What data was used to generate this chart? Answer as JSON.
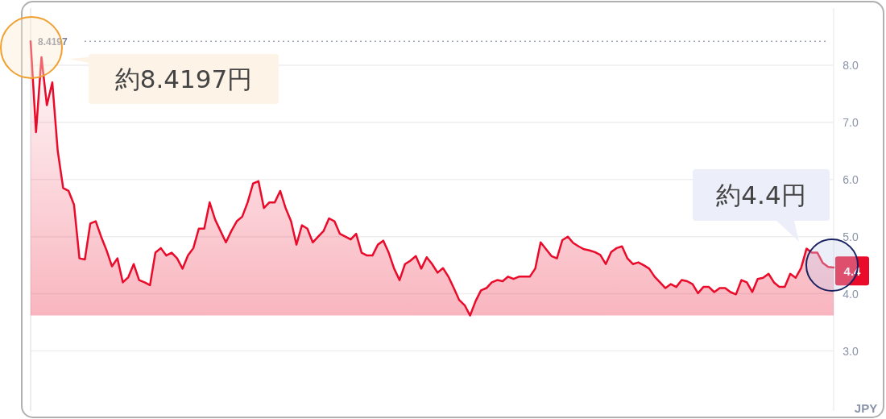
{
  "chart_data": {
    "type": "area",
    "ylabel": "JPY",
    "color": "#ea0a2a",
    "categories": [
      null,
      null,
      null,
      null,
      null,
      null,
      null,
      null,
      null,
      null,
      null,
      null,
      null,
      null,
      null,
      null,
      null,
      null,
      null,
      null,
      null,
      null,
      null,
      null,
      null,
      null,
      null,
      null,
      null,
      null,
      null,
      null,
      null,
      null,
      null,
      null,
      null,
      null,
      null,
      null,
      null,
      null,
      null,
      null,
      null,
      null,
      null,
      null,
      null,
      null,
      null,
      null,
      null,
      null,
      null,
      null,
      null,
      null,
      null,
      null,
      null,
      null,
      null,
      null,
      null,
      null,
      null,
      null,
      null,
      null,
      null,
      null,
      null,
      null,
      null,
      null,
      null,
      null,
      null,
      null,
      null,
      null,
      null,
      null,
      null,
      null,
      null,
      null,
      null,
      null,
      null,
      null,
      null,
      null,
      null,
      null,
      null,
      null,
      null,
      null,
      null,
      null,
      null,
      null,
      null,
      null,
      null,
      null,
      null,
      null,
      null,
      null,
      null,
      null,
      null,
      null,
      null,
      null,
      null,
      null,
      null,
      null,
      null,
      null,
      null,
      null,
      null,
      null,
      null,
      null,
      null,
      null,
      null,
      null,
      null,
      null,
      null,
      null,
      null,
      null,
      null,
      null,
      null,
      null,
      null,
      null,
      null,
      null,
      null
    ],
    "values": [
      8.42,
      6.83,
      8.14,
      7.3,
      7.7,
      6.5,
      5.85,
      5.8,
      5.56,
      4.62,
      4.6,
      5.23,
      5.27,
      5.0,
      4.76,
      4.48,
      4.62,
      4.2,
      4.29,
      4.52,
      4.24,
      4.2,
      4.15,
      4.72,
      4.8,
      4.67,
      4.72,
      4.62,
      4.44,
      4.67,
      4.8,
      5.14,
      5.14,
      5.6,
      5.3,
      5.1,
      4.9,
      5.1,
      5.27,
      5.35,
      5.6,
      5.93,
      5.97,
      5.5,
      5.6,
      5.6,
      5.8,
      5.5,
      5.27,
      4.86,
      5.2,
      5.14,
      4.9,
      5.0,
      5.1,
      5.32,
      5.27,
      5.05,
      5.0,
      4.95,
      5.05,
      4.72,
      4.67,
      4.67,
      4.86,
      4.93,
      4.72,
      4.44,
      4.24,
      4.52,
      4.58,
      4.66,
      4.44,
      4.64,
      4.52,
      4.37,
      4.45,
      4.3,
      4.1,
      3.89,
      3.8,
      3.62,
      3.87,
      4.06,
      4.1,
      4.2,
      4.24,
      4.22,
      4.3,
      4.26,
      4.3,
      4.3,
      4.3,
      4.44,
      4.9,
      4.78,
      4.66,
      4.62,
      4.94,
      5.0,
      4.89,
      4.83,
      4.78,
      4.76,
      4.73,
      4.68,
      4.52,
      4.73,
      4.8,
      4.83,
      4.62,
      4.52,
      4.55,
      4.5,
      4.44,
      4.3,
      4.2,
      4.1,
      4.17,
      4.12,
      4.24,
      4.22,
      4.17,
      4.01,
      4.12,
      4.12,
      4.03,
      4.1,
      4.1,
      4.03,
      3.99,
      4.24,
      4.2,
      4.03,
      4.26,
      4.28,
      4.35,
      4.2,
      4.12,
      4.12,
      4.35,
      4.28,
      4.45,
      4.79,
      4.72,
      4.72,
      4.54,
      4.47,
      4.46
    ],
    "ylim": [
      1.95,
      9.0
    ],
    "yticks": [
      {
        "value": 3,
        "label": "3.0"
      },
      {
        "value": 4,
        "label": "4.0"
      },
      {
        "value": 5,
        "label": "5.0"
      },
      {
        "value": 6,
        "label": "6.0"
      },
      {
        "value": 7,
        "label": "7.0"
      },
      {
        "value": 8,
        "label": "8.0"
      }
    ],
    "grid": "y",
    "tick_labels": "y",
    "ref_lines": [
      {
        "axis": "y",
        "value": 8.4197,
        "label": "8.4197",
        "color": "#a0a7b8",
        "line_style": "dotted"
      }
    ],
    "annotations": [
      {
        "text": "約8.4197円",
        "y": 8.4197
      },
      "約4.4円",
      {
        "text": "4.4",
        "y": 4.4
      }
    ]
  }
}
